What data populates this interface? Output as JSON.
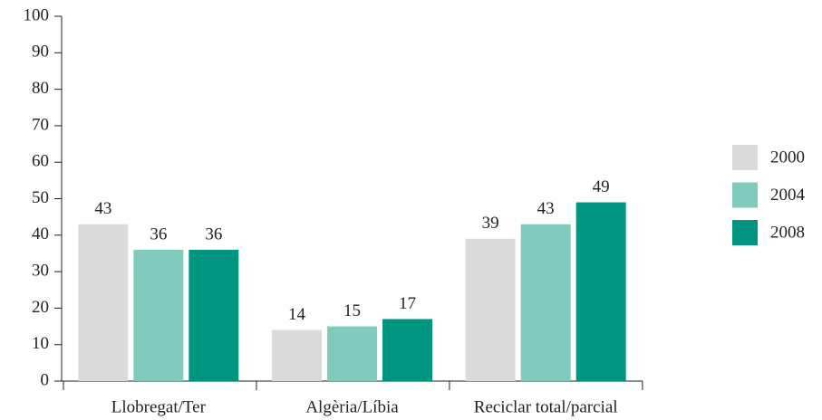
{
  "chart_data": {
    "type": "bar",
    "categories": [
      "Llobregat/Ter",
      "Algèria/Líbia",
      "Reciclar total/parcial"
    ],
    "series": [
      {
        "name": "2000",
        "color": "#dadada",
        "values": [
          43,
          14,
          39
        ]
      },
      {
        "name": "2004",
        "color": "#80cbbd",
        "values": [
          36,
          15,
          43
        ]
      },
      {
        "name": "2008",
        "color": "#009580",
        "values": [
          36,
          17,
          49
        ]
      }
    ],
    "ylim": [
      0,
      100
    ],
    "yticks": [
      0,
      10,
      20,
      30,
      40,
      50,
      60,
      70,
      80,
      90,
      100
    ],
    "grid": false,
    "legend": "right"
  }
}
